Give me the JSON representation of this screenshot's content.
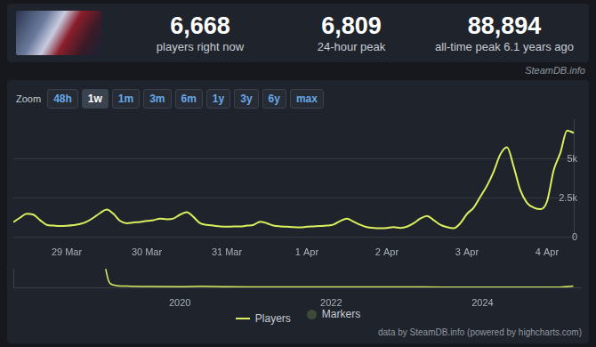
{
  "header": {
    "stats": [
      {
        "value": "6,668",
        "label": "players right now"
      },
      {
        "value": "6,809",
        "label": "24-hour peak"
      },
      {
        "value": "88,894",
        "label": "all-time peak 6.1 years ago"
      }
    ],
    "source": "SteamDB.info"
  },
  "zoom": {
    "label": "Zoom",
    "options": [
      "48h",
      "1w",
      "1m",
      "3m",
      "6m",
      "1y",
      "3y",
      "6y",
      "max"
    ],
    "selected": "1w"
  },
  "chart_data": [
    {
      "type": "line",
      "categories": [
        null,
        null,
        null,
        null,
        null,
        null,
        null,
        null,
        "29 Mar",
        null,
        null,
        null,
        null,
        null,
        null,
        null,
        null,
        null,
        null,
        null,
        "30 Mar",
        null,
        null,
        null,
        null,
        null,
        null,
        null,
        null,
        null,
        null,
        null,
        "31 Mar",
        null,
        null,
        null,
        null,
        null,
        null,
        null,
        null,
        null,
        null,
        null,
        "1 Apr",
        null,
        null,
        null,
        null,
        null,
        null,
        null,
        null,
        null,
        null,
        null,
        "2 Apr",
        null,
        null,
        null,
        null,
        null,
        null,
        null,
        null,
        null,
        null,
        null,
        "3 Apr",
        null,
        null,
        null,
        null,
        null,
        null,
        null,
        null,
        null,
        null,
        null,
        "4 Apr",
        null,
        null,
        null,
        null
      ],
      "series": [
        {
          "name": "Players",
          "color": "#dcef5f",
          "values": [
            970,
            1250,
            1500,
            1450,
            1100,
            800,
            750,
            720,
            740,
            780,
            850,
            1000,
            1250,
            1550,
            1770,
            1500,
            1050,
            900,
            950,
            980,
            1050,
            1100,
            1200,
            1150,
            1200,
            1450,
            1600,
            1300,
            900,
            800,
            750,
            700,
            680,
            700,
            700,
            750,
            800,
            1000,
            900,
            750,
            700,
            680,
            650,
            640,
            680,
            700,
            720,
            750,
            820,
            1050,
            1200,
            1000,
            800,
            650,
            600,
            580,
            600,
            650,
            600,
            680,
            900,
            1200,
            1370,
            1100,
            800,
            650,
            580,
            900,
            1500,
            1900,
            2600,
            3300,
            4200,
            5300,
            5750,
            4500,
            3000,
            2200,
            1900,
            1800,
            2300,
            4300,
            5400,
            6809,
            6668
          ]
        },
        {
          "name": "Markers",
          "color": "#3c4a39",
          "values": [
            null,
            null,
            null,
            null,
            null,
            null,
            null,
            null,
            null,
            null,
            null,
            null,
            null,
            null,
            null,
            null,
            null,
            null,
            null,
            null,
            null,
            null,
            null,
            null,
            null,
            null,
            null,
            null,
            null,
            null,
            null,
            null,
            null,
            null,
            null,
            null,
            null,
            null,
            null,
            null,
            null,
            null,
            null,
            null,
            null,
            null,
            null,
            null,
            null,
            null,
            null,
            null,
            null,
            null,
            null,
            null,
            null,
            null,
            null,
            null,
            null,
            null,
            null,
            null,
            null,
            null,
            null,
            null,
            null,
            null,
            null,
            null,
            null,
            null,
            null,
            null,
            null,
            null,
            null,
            null,
            null,
            null,
            null,
            null,
            null
          ]
        }
      ],
      "ylim": [
        0,
        7500
      ],
      "yticks": [
        0,
        {
          "value": 2500,
          "label": "2.5k"
        },
        {
          "value": 5000,
          "label": "5k"
        }
      ],
      "grid": true,
      "legend": "bottom"
    },
    {
      "type": "line",
      "x": [
        2019.02,
        2019.06,
        2019.12,
        2019.3,
        2019.6,
        2020.0,
        2020.3,
        2020.6,
        2021.0,
        2021.5,
        2022.0,
        2022.5,
        2023.0,
        2023.5,
        2024.0,
        2024.5,
        2025.0,
        2025.2
      ],
      "values": [
        88894,
        30000,
        12000,
        6000,
        4000,
        3500,
        5000,
        3000,
        2500,
        2200,
        2000,
        2400,
        1800,
        1600,
        1500,
        1400,
        1100,
        6809
      ],
      "color": "#dcef5f",
      "xlim": [
        2017.8,
        2025.3
      ],
      "xticks": [
        2020,
        2022,
        2024
      ],
      "ylim": [
        0,
        90000
      ],
      "grid": false,
      "tick_labels": "x"
    }
  ],
  "credit": "data by SteamDB.info (powered by highcharts.com)"
}
